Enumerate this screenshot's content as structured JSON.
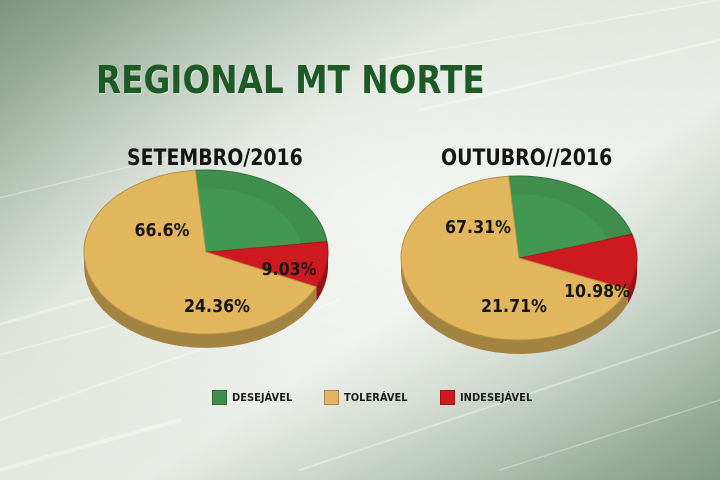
{
  "title": "REGIONAL MT NORTE",
  "colors": {
    "desejavel": "#3f8e4b",
    "toleravel": "#e2b65c",
    "indesejavel": "#cc1a20",
    "title": "#1e5a26"
  },
  "legend": [
    {
      "label": "DESEJÁVEL",
      "color": "#3f8e4b"
    },
    {
      "label": "TOLERÁVEL",
      "color": "#e2b65c"
    },
    {
      "label": "INDESEJÁVEL",
      "color": "#cc1a20"
    }
  ],
  "chart_data": [
    {
      "type": "pie",
      "title": "SETEMBRO/2016",
      "slices": [
        {
          "category": "DESEJÁVEL",
          "value": 24.36,
          "label": "24.36%"
        },
        {
          "category": "TOLERÁVEL",
          "value": 66.6,
          "label": "66.6%"
        },
        {
          "category": "INDESEJÁVEL",
          "value": 9.03,
          "label": "9.03%"
        }
      ]
    },
    {
      "type": "pie",
      "title": "OUTUBRO//2016",
      "slices": [
        {
          "category": "DESEJÁVEL",
          "value": 21.71,
          "label": "21.71%"
        },
        {
          "category": "TOLERÁVEL",
          "value": 67.31,
          "label": "67.31%"
        },
        {
          "category": "INDESEJÁVEL",
          "value": 10.98,
          "label": "10.98%"
        }
      ]
    }
  ]
}
